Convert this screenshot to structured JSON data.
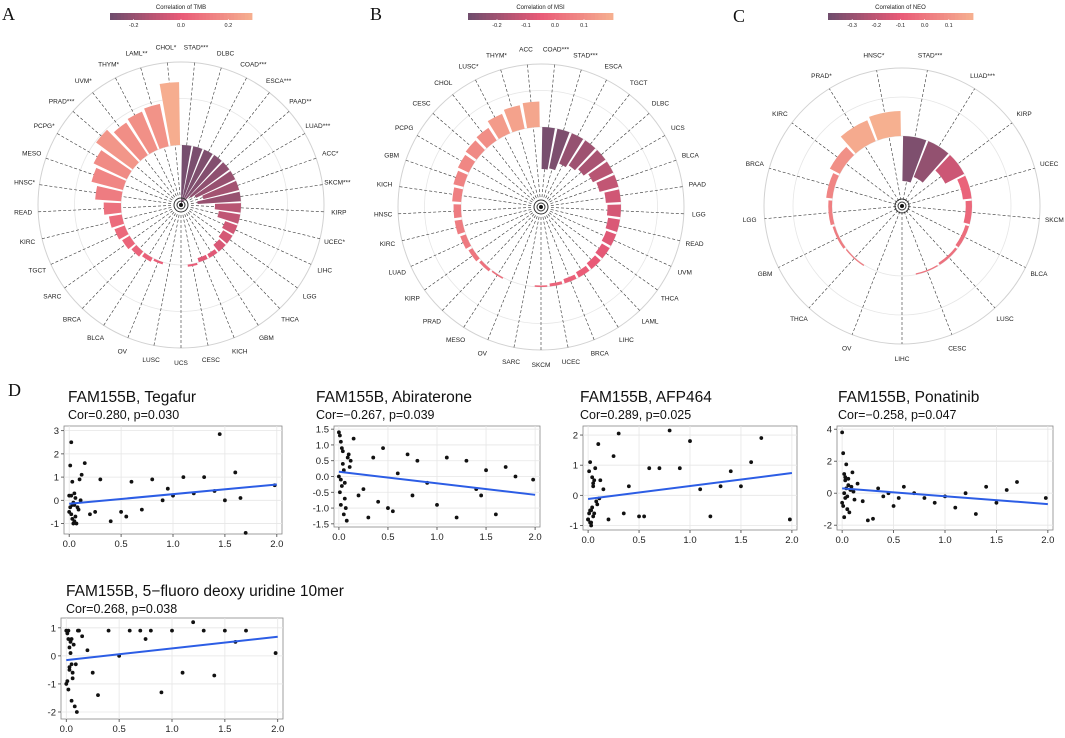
{
  "figure": {
    "panel_letters": [
      "A",
      "B",
      "C",
      "D"
    ]
  },
  "colors": {
    "low": "#6e4d6d",
    "mid": "#e95a77",
    "high": "#f6b090",
    "regression_line": "#2c5de5",
    "points": "#111111",
    "grid": "#e6e6e6"
  },
  "chart_data": [
    {
      "type": "radial_bar",
      "panel": "A",
      "title": "Correlation of TMB",
      "legend": {
        "title": "Correlation of TMB",
        "range": [
          -0.3,
          0.3
        ],
        "ticks": [
          -0.2,
          0.0,
          0.2
        ]
      },
      "baseline": 0,
      "range": [
        -0.3,
        0.3
      ],
      "categories": [
        "STAD***",
        "DLBC",
        "COAD***",
        "ESCA***",
        "PAAD**",
        "LUAD***",
        "ACC*",
        "SKCM***",
        "KIRP",
        "UCEC*",
        "LIHC",
        "LGG",
        "THCA",
        "GBM",
        "KICH",
        "CESC",
        "UCS",
        "LUSC",
        "OV",
        "BLCA",
        "BRCA",
        "SARC",
        "TGCT",
        "KIRC",
        "READ",
        "HNSC*",
        "MESO",
        "PCPG*",
        "PRAD***",
        "UVM*",
        "THYM*",
        "LAML**",
        "CHOL*"
      ],
      "values": [
        -0.28,
        -0.27,
        -0.26,
        -0.25,
        -0.22,
        -0.2,
        -0.17,
        -0.2,
        -0.12,
        -0.1,
        -0.06,
        -0.05,
        -0.04,
        -0.02,
        -0.02,
        0.01,
        0.0,
        0.0,
        0.01,
        0.02,
        0.03,
        0.04,
        0.05,
        0.06,
        0.08,
        0.12,
        0.15,
        0.17,
        0.21,
        0.18,
        0.19,
        0.2,
        0.29
      ]
    },
    {
      "type": "radial_bar",
      "panel": "B",
      "title": "Correlation of MSI",
      "legend": {
        "title": "Correlation of MSI",
        "range": [
          -0.3,
          0.2
        ],
        "ticks": [
          -0.2,
          -0.1,
          0.0,
          0.1
        ]
      },
      "baseline": 0,
      "range": [
        -0.3,
        0.2
      ],
      "categories": [
        "COAD***",
        "STAD***",
        "ESCA",
        "TGCT",
        "DLBC",
        "UCS",
        "BLCA",
        "PAAD",
        "LGG",
        "READ",
        "UVM",
        "THCA",
        "LAML",
        "LIHC",
        "BRCA",
        "UCEC",
        "SKCM",
        "SARC",
        "OV",
        "MESO",
        "PRAD",
        "KIRP",
        "LUAD",
        "KIRC",
        "HNSC",
        "KICH",
        "GBM",
        "PCPG",
        "CESC",
        "CHOL",
        "LUSC*",
        "THYM*",
        "ACC"
      ],
      "values": [
        -0.28,
        -0.27,
        -0.22,
        -0.2,
        -0.18,
        -0.15,
        -0.13,
        -0.1,
        -0.09,
        -0.08,
        -0.07,
        -0.06,
        -0.05,
        -0.04,
        -0.03,
        -0.02,
        -0.01,
        0.0,
        0.0,
        0.01,
        0.02,
        0.03,
        0.04,
        0.05,
        0.05,
        0.06,
        0.07,
        0.08,
        0.09,
        0.1,
        0.14,
        0.16,
        0.17
      ]
    },
    {
      "type": "radial_bar",
      "panel": "C",
      "title": "Correlation of NEO",
      "legend": {
        "title": "Correlation of NEO",
        "range": [
          -0.4,
          0.2
        ],
        "ticks": [
          -0.3,
          -0.2,
          -0.1,
          0.0,
          0.1
        ]
      },
      "baseline": 0,
      "range": [
        -0.4,
        0.2
      ],
      "categories": [
        "STAD***",
        "LUAD***",
        "KIRP",
        "UCEC",
        "SKCM",
        "BLCA",
        "LUSC",
        "CESC",
        "LIHC",
        "OV",
        "THCA",
        "GBM",
        "LGG",
        "BRCA",
        "KIRC",
        "PRAD*",
        "HNSC*"
      ],
      "values": [
        -0.36,
        -0.31,
        -0.17,
        -0.07,
        -0.05,
        -0.03,
        -0.02,
        -0.01,
        0.0,
        0.0,
        0.01,
        0.02,
        0.03,
        0.05,
        0.09,
        0.18,
        0.2
      ]
    },
    {
      "type": "scatter",
      "panel": "D",
      "title": "FAM155B, Tegafur",
      "stats": "Cor=0.280, p=0.030",
      "xlim": [
        -0.05,
        2.05
      ],
      "ylim": [
        -1.45,
        3.2
      ],
      "xticks": [
        "0.0",
        "0.5",
        "1.0",
        "1.5",
        "2.0"
      ],
      "yticks": [
        "-1",
        "0",
        "1",
        "2",
        "3"
      ],
      "line": [
        [
          0.0,
          -0.15
        ],
        [
          2.0,
          0.68
        ]
      ],
      "x": [
        0.0,
        0.01,
        0.02,
        0.03,
        0.04,
        0.05,
        0.06,
        0.01,
        0.02,
        0.05,
        0.08,
        0.1,
        0.12,
        0.15,
        0.02,
        0.03,
        0.06,
        0.07,
        0.09,
        0.0,
        0.04,
        0.11,
        0.2,
        0.25,
        0.3,
        0.4,
        0.5,
        0.55,
        0.6,
        0.7,
        0.8,
        0.9,
        0.95,
        1.0,
        1.1,
        1.2,
        1.3,
        1.4,
        1.45,
        1.5,
        1.6,
        1.65,
        1.7,
        1.98,
        0.03,
        0.05
      ],
      "y": [
        -0.5,
        -0.3,
        0.2,
        -0.8,
        -1.0,
        -0.2,
        0.1,
        1.5,
        -0.6,
        -0.9,
        -0.3,
        0.9,
        1.1,
        1.6,
        2.5,
        0.8,
        -0.7,
        -1.0,
        -0.4,
        0.2,
        -0.1,
        0.0,
        -0.6,
        -0.5,
        0.9,
        -0.9,
        -0.5,
        -0.7,
        0.8,
        -0.4,
        0.9,
        0.0,
        0.5,
        0.2,
        1.0,
        0.3,
        1.0,
        0.4,
        2.85,
        0.0,
        1.2,
        0.1,
        -1.4,
        0.65,
        -0.2,
        0.3
      ]
    },
    {
      "type": "scatter",
      "panel": "D",
      "title": "FAM155B, Abiraterone",
      "stats": "Cor=−0.267, p=0.039",
      "xlim": [
        -0.05,
        2.05
      ],
      "ylim": [
        -1.6,
        1.6
      ],
      "xticks": [
        "0.0",
        "0.5",
        "1.0",
        "1.5",
        "2.0"
      ],
      "yticks": [
        "-1.5",
        "-1.0",
        "-0.5",
        "0.0",
        "0.5",
        "1.0",
        "1.5"
      ],
      "line": [
        [
          0.0,
          0.15
        ],
        [
          2.0,
          -0.58
        ]
      ],
      "x": [
        0.0,
        0.01,
        0.02,
        0.03,
        0.04,
        0.05,
        0.06,
        0.01,
        0.02,
        0.05,
        0.08,
        0.1,
        0.12,
        0.15,
        0.02,
        0.03,
        0.06,
        0.07,
        0.09,
        0.0,
        0.04,
        0.11,
        0.2,
        0.25,
        0.3,
        0.35,
        0.4,
        0.45,
        0.5,
        0.55,
        0.6,
        0.7,
        0.75,
        0.8,
        0.9,
        1.0,
        1.1,
        1.2,
        1.3,
        1.4,
        1.45,
        1.5,
        1.6,
        1.7,
        1.8,
        1.98
      ],
      "y": [
        1.4,
        1.3,
        1.1,
        0.9,
        0.4,
        0.2,
        -0.2,
        -0.5,
        -0.9,
        -1.2,
        -1.4,
        0.7,
        0.5,
        1.2,
        -0.1,
        -0.3,
        -0.7,
        -1.0,
        0.6,
        0.0,
        0.8,
        0.3,
        -0.6,
        -0.4,
        -1.3,
        0.6,
        -0.8,
        0.9,
        -1.0,
        -1.1,
        0.1,
        0.7,
        -0.6,
        0.5,
        -0.2,
        -0.9,
        0.6,
        -1.3,
        0.5,
        -0.4,
        -0.6,
        0.2,
        -1.2,
        0.3,
        0.0,
        -0.1
      ]
    },
    {
      "type": "scatter",
      "panel": "D",
      "title": "FAM155B, AFP464",
      "stats": "Cor=0.289, p=0.025",
      "xlim": [
        -0.05,
        2.05
      ],
      "ylim": [
        -1.15,
        2.3
      ],
      "xticks": [
        "0.0",
        "0.5",
        "1.0",
        "1.5",
        "2.0"
      ],
      "yticks": [
        "-1",
        "0",
        "1",
        "2"
      ],
      "line": [
        [
          0.0,
          -0.12
        ],
        [
          2.0,
          0.74
        ]
      ],
      "x": [
        0.0,
        0.01,
        0.02,
        0.03,
        0.04,
        0.05,
        0.06,
        0.01,
        0.02,
        0.05,
        0.08,
        0.1,
        0.12,
        0.15,
        0.02,
        0.03,
        0.06,
        0.07,
        0.09,
        0.0,
        0.04,
        0.11,
        0.2,
        0.25,
        0.3,
        0.35,
        0.4,
        0.5,
        0.55,
        0.6,
        0.7,
        0.8,
        0.9,
        1.0,
        1.1,
        1.2,
        1.3,
        1.4,
        1.5,
        1.6,
        1.7,
        1.98,
        0.03,
        0.05
      ],
      "y": [
        -0.8,
        -0.6,
        -0.9,
        -1.0,
        -0.4,
        -0.7,
        0.5,
        0.8,
        1.1,
        0.3,
        -0.2,
        1.7,
        0.5,
        0.2,
        -0.5,
        -0.9,
        -0.6,
        0.9,
        -0.3,
        -0.8,
        0.6,
        -0.1,
        -0.8,
        1.3,
        2.05,
        -0.6,
        0.3,
        -0.7,
        -0.7,
        0.9,
        0.9,
        2.15,
        0.9,
        1.8,
        0.2,
        -0.7,
        0.3,
        0.8,
        0.3,
        1.1,
        1.9,
        -0.8,
        -0.5,
        0.4
      ]
    },
    {
      "type": "scatter",
      "panel": "D",
      "title": "FAM155B, Ponatinib",
      "stats": "Cor=−0.258, p=0.047",
      "xlim": [
        -0.05,
        2.05
      ],
      "ylim": [
        -2.3,
        4.2
      ],
      "xticks": [
        "0.0",
        "0.5",
        "1.0",
        "1.5",
        "2.0"
      ],
      "yticks": [
        "-2",
        "0",
        "2",
        "4"
      ],
      "line": [
        [
          0.0,
          0.3
        ],
        [
          2.0,
          -0.68
        ]
      ],
      "x": [
        0.0,
        0.01,
        0.02,
        0.03,
        0.04,
        0.05,
        0.06,
        0.01,
        0.02,
        0.05,
        0.08,
        0.1,
        0.12,
        0.15,
        0.02,
        0.03,
        0.06,
        0.07,
        0.09,
        0.0,
        0.04,
        0.11,
        0.2,
        0.25,
        0.3,
        0.35,
        0.4,
        0.45,
        0.5,
        0.55,
        0.6,
        0.7,
        0.8,
        0.9,
        1.0,
        1.1,
        1.2,
        1.3,
        1.4,
        1.5,
        1.6,
        1.7,
        1.98,
        0.03
      ],
      "y": [
        3.8,
        2.5,
        1.2,
        0.8,
        0.3,
        -0.2,
        0.5,
        -0.8,
        -1.5,
        -1.0,
        0.2,
        1.3,
        -0.4,
        0.6,
        0.0,
        -0.3,
        0.9,
        -1.2,
        0.4,
        -0.6,
        1.8,
        0.1,
        -0.5,
        -1.7,
        -1.6,
        0.3,
        -0.2,
        0.0,
        -0.8,
        -0.3,
        0.4,
        0.0,
        -0.3,
        -0.6,
        -0.2,
        -0.9,
        0.0,
        -1.3,
        0.4,
        -0.6,
        0.2,
        0.7,
        -0.3,
        1.0
      ]
    },
    {
      "type": "scatter",
      "panel": "D",
      "title": "FAM155B, 5−fluoro deoxy uridine 10mer",
      "stats": "Cor=0.268, p=0.038",
      "xlim": [
        -0.05,
        2.05
      ],
      "ylim": [
        -2.25,
        1.35
      ],
      "xticks": [
        "0.0",
        "0.5",
        "1.0",
        "1.5",
        "2.0"
      ],
      "yticks": [
        "-2",
        "-1",
        "0",
        "1"
      ],
      "line": [
        [
          0.0,
          -0.15
        ],
        [
          2.0,
          0.68
        ]
      ],
      "x": [
        0.0,
        0.01,
        0.02,
        0.03,
        0.04,
        0.05,
        0.06,
        0.01,
        0.02,
        0.05,
        0.08,
        0.1,
        0.12,
        0.15,
        0.02,
        0.03,
        0.06,
        0.07,
        0.09,
        0.0,
        0.04,
        0.11,
        0.2,
        0.25,
        0.3,
        0.4,
        0.5,
        0.6,
        0.7,
        0.75,
        0.8,
        0.9,
        1.0,
        1.1,
        1.2,
        1.3,
        1.4,
        1.5,
        1.6,
        1.7,
        1.98,
        0.03,
        0.05
      ],
      "y": [
        0.9,
        0.8,
        0.6,
        0.3,
        0.1,
        -0.3,
        -0.6,
        -0.9,
        -1.2,
        -1.6,
        -1.8,
        -2.0,
        0.9,
        0.7,
        0.9,
        -0.5,
        -0.8,
        0.4,
        -0.3,
        -1.0,
        0.5,
        0.9,
        0.2,
        -0.6,
        -1.4,
        0.9,
        0.0,
        0.9,
        0.9,
        0.6,
        0.9,
        -1.3,
        0.9,
        -0.6,
        1.2,
        0.9,
        -0.7,
        0.9,
        0.5,
        0.9,
        0.1,
        -0.4,
        0.6
      ]
    }
  ]
}
